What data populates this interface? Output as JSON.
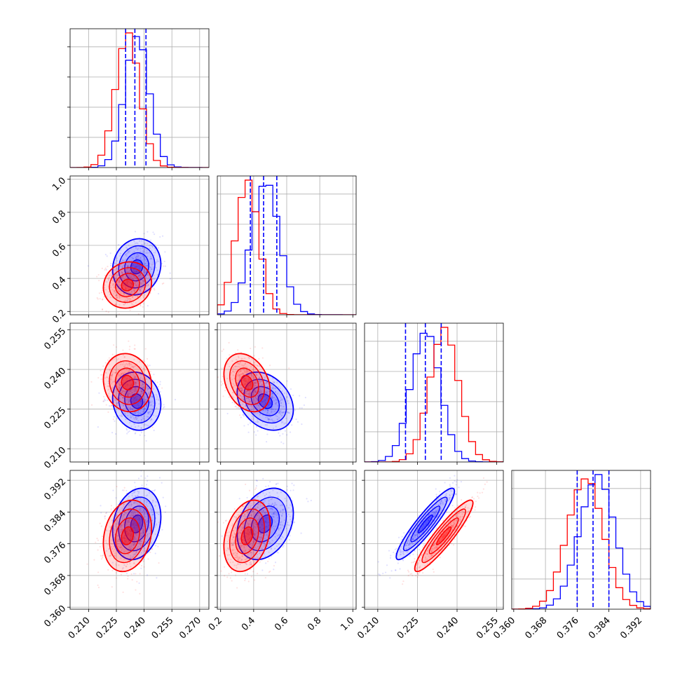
{
  "chart_data": {
    "type": "corner",
    "n_params": 4,
    "colors": {
      "series_a": "#0000ff",
      "series_b": "#ff0000",
      "grid": "#b0b0b0",
      "axis": "#000000"
    },
    "grid": true,
    "parameters": [
      {
        "range": [
          0.2,
          0.275
        ],
        "ticks": [
          "0.210",
          "0.225",
          "0.240",
          "0.255",
          "0.270"
        ],
        "tick_values": [
          0.21,
          0.225,
          0.24,
          0.255,
          0.27
        ]
      },
      {
        "range": [
          0.18,
          1.02
        ],
        "ticks": [
          "0.2",
          "0.4",
          "0.6",
          "0.8",
          "1.0"
        ],
        "tick_values": [
          0.2,
          0.4,
          0.6,
          0.8,
          1.0
        ]
      },
      {
        "range": [
          0.205,
          0.2575
        ],
        "ticks": [
          "0.210",
          "0.225",
          "0.240",
          "0.255"
        ],
        "tick_values": [
          0.21,
          0.225,
          0.24,
          0.255
        ]
      },
      {
        "range": [
          0.3595,
          0.3945
        ],
        "ticks": [
          "0.360",
          "0.368",
          "0.376",
          "0.384",
          "0.392"
        ],
        "tick_values": [
          0.36,
          0.368,
          0.376,
          0.384,
          0.392
        ]
      }
    ],
    "quantile_lines": [
      [
        0.23,
        0.235,
        0.241
      ],
      [
        0.38,
        0.46,
        0.54
      ],
      [
        0.2205,
        0.228,
        0.234
      ],
      [
        0.376,
        0.38,
        0.384
      ]
    ],
    "series": [
      {
        "color": "blue",
        "means": [
          0.236,
          0.47,
          0.228,
          0.381
        ],
        "sds": [
          0.0065,
          0.085,
          0.0055,
          0.0045
        ]
      },
      {
        "color": "red",
        "means": [
          0.231,
          0.36,
          0.235,
          0.378
        ],
        "sds": [
          0.0065,
          0.07,
          0.0055,
          0.0045
        ]
      }
    ],
    "correlations_series_a": {
      "2-3": 0.92,
      "1-2": -0.3,
      "0-1": 0.1,
      "0-2": -0.1,
      "0-3": 0.2,
      "1-3": 0.3
    },
    "correlations_series_b": {
      "2-3": 0.92,
      "1-2": -0.3,
      "0-1": 0.1,
      "0-2": -0.1,
      "0-3": 0.2,
      "1-3": 0.3
    }
  }
}
